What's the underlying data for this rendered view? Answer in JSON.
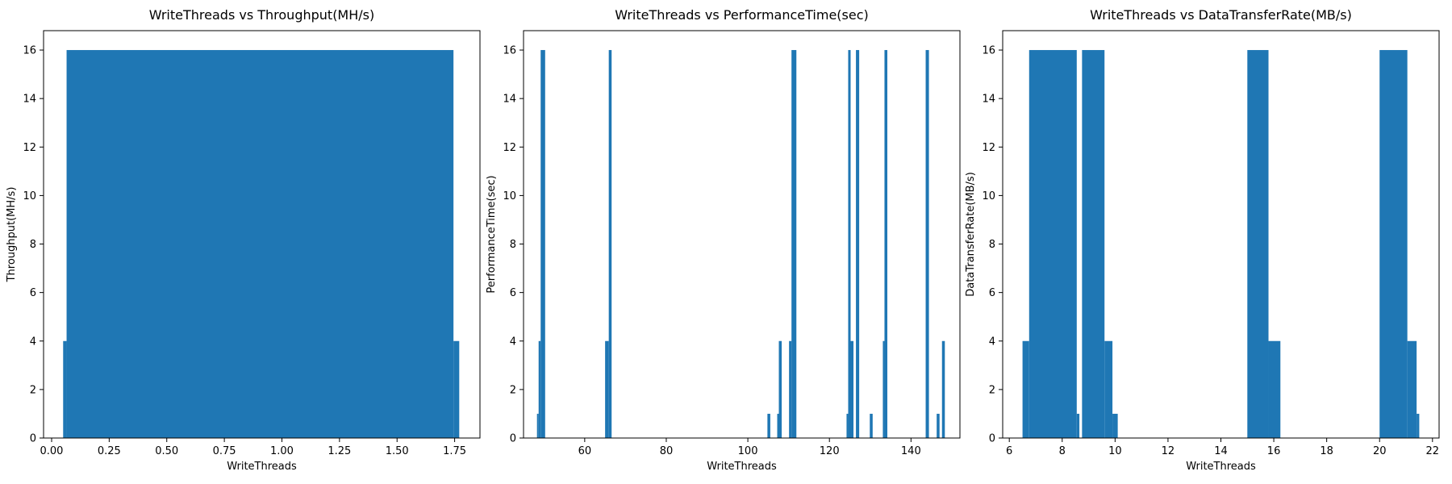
{
  "chart_data": [
    {
      "type": "bar",
      "title": "WriteThreads vs Throughput(MH/s)",
      "xlabel": "WriteThreads",
      "ylabel": "Throughput(MH/s)",
      "xlim": [
        -0.035,
        1.86
      ],
      "ylim": [
        0,
        16.8
      ],
      "xticks": [
        "0.00",
        "0.25",
        "0.50",
        "0.75",
        "1.00",
        "1.25",
        "1.50",
        "1.75"
      ],
      "yticks": [
        "0",
        "2",
        "4",
        "6",
        "8",
        "10",
        "12",
        "14",
        "16"
      ],
      "grid": false,
      "bars": [
        {
          "x0": 0.05,
          "x1": 0.065,
          "value": 4
        },
        {
          "x0": 0.065,
          "x1": 1.745,
          "value": 16
        },
        {
          "x0": 1.745,
          "x1": 1.77,
          "value": 4
        }
      ]
    },
    {
      "type": "bar",
      "title": "WriteThreads vs PerformanceTime(sec)",
      "xlabel": "WriteThreads",
      "ylabel": "PerformanceTime(sec)",
      "xlim": [
        45,
        152
      ],
      "ylim": [
        0,
        16.8
      ],
      "xticks": [
        "60",
        "80",
        "100",
        "120",
        "140"
      ],
      "yticks": [
        "0",
        "2",
        "4",
        "6",
        "8",
        "10",
        "12",
        "14",
        "16"
      ],
      "grid": false,
      "bars": [
        {
          "x0": 48.3,
          "x1": 48.7,
          "value": 1
        },
        {
          "x0": 48.7,
          "x1": 49.2,
          "value": 4
        },
        {
          "x0": 49.2,
          "x1": 50.3,
          "value": 16
        },
        {
          "x0": 65.0,
          "x1": 65.9,
          "value": 4
        },
        {
          "x0": 65.9,
          "x1": 66.6,
          "value": 16
        },
        {
          "x0": 104.8,
          "x1": 105.5,
          "value": 1
        },
        {
          "x0": 107.2,
          "x1": 107.6,
          "value": 1
        },
        {
          "x0": 107.6,
          "x1": 108.3,
          "value": 4
        },
        {
          "x0": 110.1,
          "x1": 110.7,
          "value": 4
        },
        {
          "x0": 110.7,
          "x1": 111.9,
          "value": 16
        },
        {
          "x0": 124.2,
          "x1": 124.6,
          "value": 1
        },
        {
          "x0": 124.6,
          "x1": 125.2,
          "value": 16
        },
        {
          "x0": 125.2,
          "x1": 125.9,
          "value": 4
        },
        {
          "x0": 126.5,
          "x1": 127.3,
          "value": 16
        },
        {
          "x0": 129.9,
          "x1": 130.6,
          "value": 1
        },
        {
          "x0": 133.1,
          "x1": 133.5,
          "value": 4
        },
        {
          "x0": 133.5,
          "x1": 134.2,
          "value": 16
        },
        {
          "x0": 143.6,
          "x1": 144.4,
          "value": 16
        },
        {
          "x0": 146.3,
          "x1": 147.0,
          "value": 1
        },
        {
          "x0": 147.6,
          "x1": 148.3,
          "value": 4
        }
      ]
    },
    {
      "type": "bar",
      "title": "WriteThreads vs DataTransferRate(MB/s)",
      "xlabel": "WriteThreads",
      "ylabel": "DataTransferRate(MB/s)",
      "xlim": [
        5.75,
        22.25
      ],
      "ylim": [
        0,
        16.8
      ],
      "xticks": [
        "6",
        "8",
        "10",
        "12",
        "14",
        "16",
        "18",
        "20",
        "22"
      ],
      "yticks": [
        "0",
        "2",
        "4",
        "6",
        "8",
        "10",
        "12",
        "14",
        "16"
      ],
      "grid": false,
      "bars": [
        {
          "x0": 6.5,
          "x1": 6.75,
          "value": 4
        },
        {
          "x0": 6.75,
          "x1": 8.55,
          "value": 16
        },
        {
          "x0": 8.55,
          "x1": 8.65,
          "value": 1
        },
        {
          "x0": 8.75,
          "x1": 9.6,
          "value": 16
        },
        {
          "x0": 9.6,
          "x1": 9.9,
          "value": 4
        },
        {
          "x0": 9.9,
          "x1": 10.1,
          "value": 1
        },
        {
          "x0": 15.0,
          "x1": 15.8,
          "value": 16
        },
        {
          "x0": 15.8,
          "x1": 16.25,
          "value": 4
        },
        {
          "x0": 20.0,
          "x1": 21.05,
          "value": 16
        },
        {
          "x0": 21.05,
          "x1": 21.4,
          "value": 4
        },
        {
          "x0": 21.4,
          "x1": 21.5,
          "value": 1
        }
      ]
    }
  ],
  "colors": {
    "bar": "#1f77b4",
    "axis": "#000000",
    "background": "#ffffff"
  }
}
